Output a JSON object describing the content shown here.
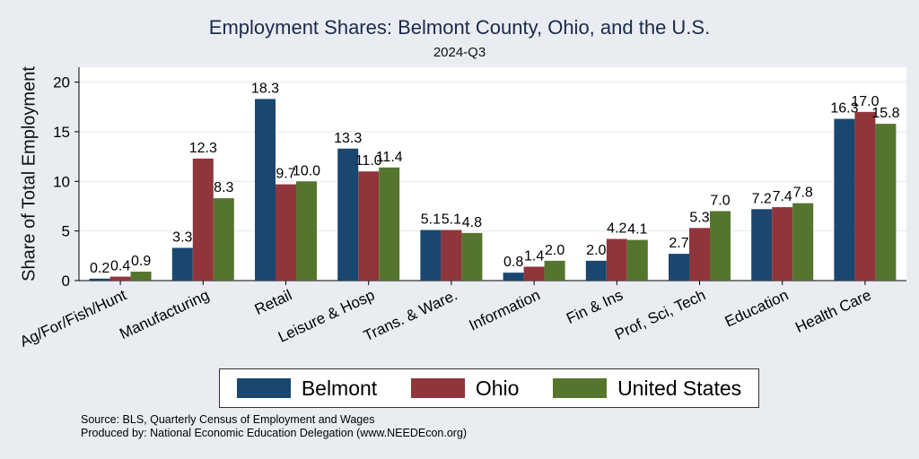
{
  "chart_data": {
    "type": "bar",
    "title": "Employment Shares: Belmont County, Ohio, and the U.S.",
    "subtitle": "2024-Q3",
    "xlabel": "",
    "ylabel": "Share of Total Employment",
    "ylim": [
      0,
      21.5
    ],
    "yticks": [
      0,
      5,
      10,
      15,
      20
    ],
    "categories": [
      "Ag/For/Fish/Hunt",
      "Manufacturing",
      "Retail",
      "Leisure & Hosp",
      "Trans. & Ware.",
      "Information",
      "Fin & Ins",
      "Prof, Sci, Tech",
      "Education",
      "Health Care"
    ],
    "series": [
      {
        "name": "Belmont",
        "color": "#1a476f",
        "values": [
          0.2,
          3.3,
          18.3,
          13.3,
          5.1,
          0.8,
          2.0,
          2.7,
          7.2,
          16.3
        ]
      },
      {
        "name": "Ohio",
        "color": "#90353b",
        "values": [
          0.4,
          12.3,
          9.7,
          11.0,
          5.1,
          1.4,
          4.2,
          5.3,
          7.4,
          17.0
        ]
      },
      {
        "name": "United States",
        "color": "#55752f",
        "values": [
          0.9,
          8.3,
          10.0,
          11.4,
          4.8,
          2.0,
          4.1,
          7.0,
          7.8,
          15.8
        ]
      }
    ],
    "grid": true,
    "legend_position": "bottom"
  },
  "source": {
    "line1": "Source: BLS, Quarterly Census of Employment and Wages",
    "line2": "Produced by: National Economic Education Delegation (www.NEEDEcon.org)"
  }
}
